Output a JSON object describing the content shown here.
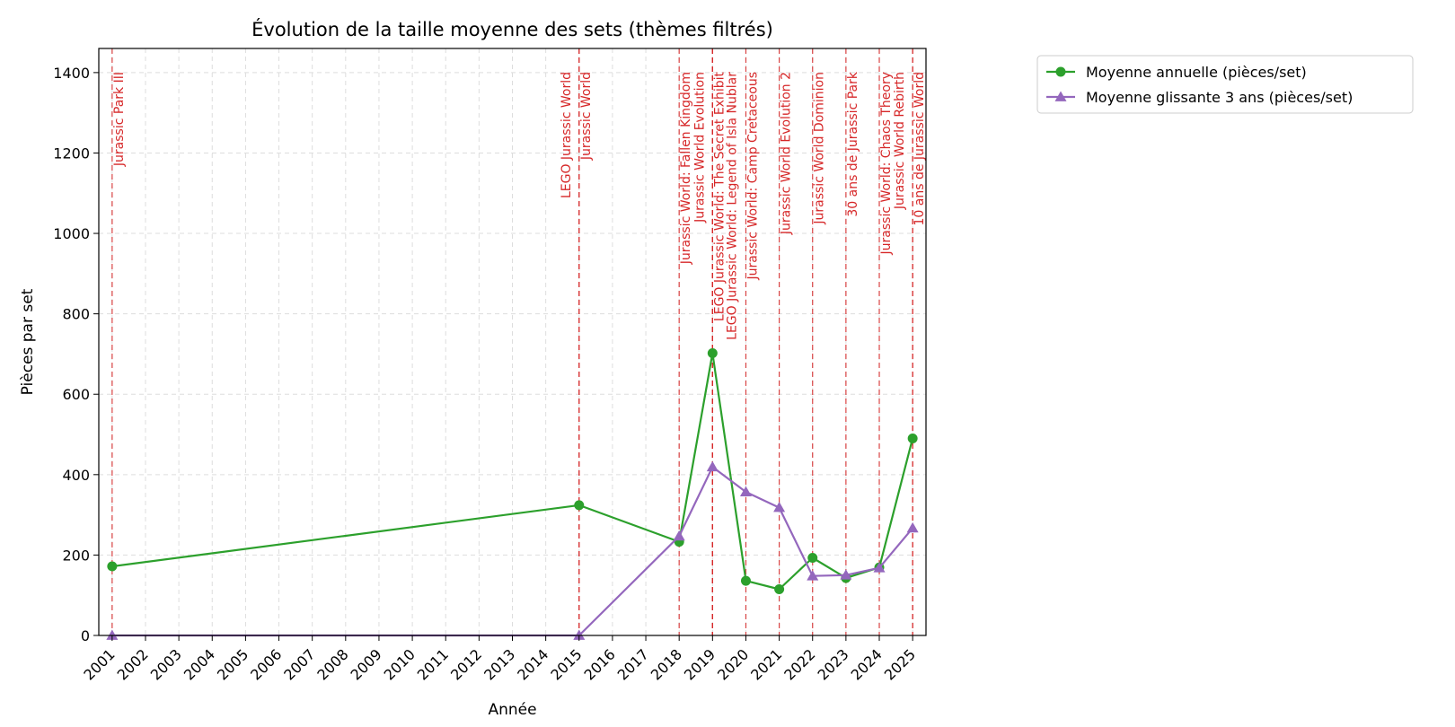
{
  "chart_data": {
    "type": "line",
    "title": "Évolution de la taille moyenne des sets (thèmes filtrés)",
    "xlabel": "Année",
    "ylabel": "Pièces par set",
    "x": [
      2001,
      2015,
      2018,
      2019,
      2020,
      2021,
      2022,
      2023,
      2024,
      2025
    ],
    "xticks": [
      "2001",
      "2002",
      "2003",
      "2004",
      "2005",
      "2006",
      "2007",
      "2008",
      "2009",
      "2010",
      "2011",
      "2012",
      "2013",
      "2014",
      "2015",
      "2016",
      "2017",
      "2018",
      "2019",
      "2020",
      "2021",
      "2022",
      "2023",
      "2024",
      "2025"
    ],
    "xlim": [
      2000.6,
      2025.4
    ],
    "ylim": [
      0,
      1460
    ],
    "yticks": [
      0,
      200,
      400,
      600,
      800,
      1000,
      1200,
      1400
    ],
    "grid": true,
    "legend_position": "outside-top-right",
    "series": [
      {
        "name": "Moyenne annuelle (pièces/set)",
        "color": "#2ca02c",
        "marker": "circle",
        "values": [
          172,
          324,
          233,
          702,
          136,
          115,
          193,
          143,
          169,
          490
        ]
      },
      {
        "name": "Moyenne glissante 3 ans (pièces/set)",
        "color": "#9467bd",
        "marker": "triangle",
        "values": [
          0,
          0,
          247,
          419,
          357,
          318,
          148,
          150,
          168,
          267
        ]
      }
    ],
    "event_color": "#d62728",
    "events": [
      {
        "x": 2001,
        "label": "Jurassic Park III"
      },
      {
        "x": 2015,
        "label": "LEGO Jurassic World"
      },
      {
        "x": 2015,
        "label": "Jurassic World"
      },
      {
        "x": 2018,
        "label": "Jurassic World: Fallen Kingdom"
      },
      {
        "x": 2019,
        "label": "Jurassic World Evolution"
      },
      {
        "x": 2019,
        "label": "LEGO Jurassic World: The Secret Exhibit"
      },
      {
        "x": 2019,
        "label": "LEGO Jurassic World: Legend of Isla Nublar"
      },
      {
        "x": 2020,
        "label": "Jurassic World: Camp Cretaceous"
      },
      {
        "x": 2021,
        "label": "Jurassic World Evolution 2"
      },
      {
        "x": 2022,
        "label": "Jurassic World Dominion"
      },
      {
        "x": 2023,
        "label": "30 ans de Jurassic Park"
      },
      {
        "x": 2024,
        "label": "Jurassic World: Chaos Theory"
      },
      {
        "x": 2025,
        "label": "Jurassic World Rebirth"
      },
      {
        "x": 2025,
        "label": "10 ans de Jurassic World"
      }
    ]
  }
}
